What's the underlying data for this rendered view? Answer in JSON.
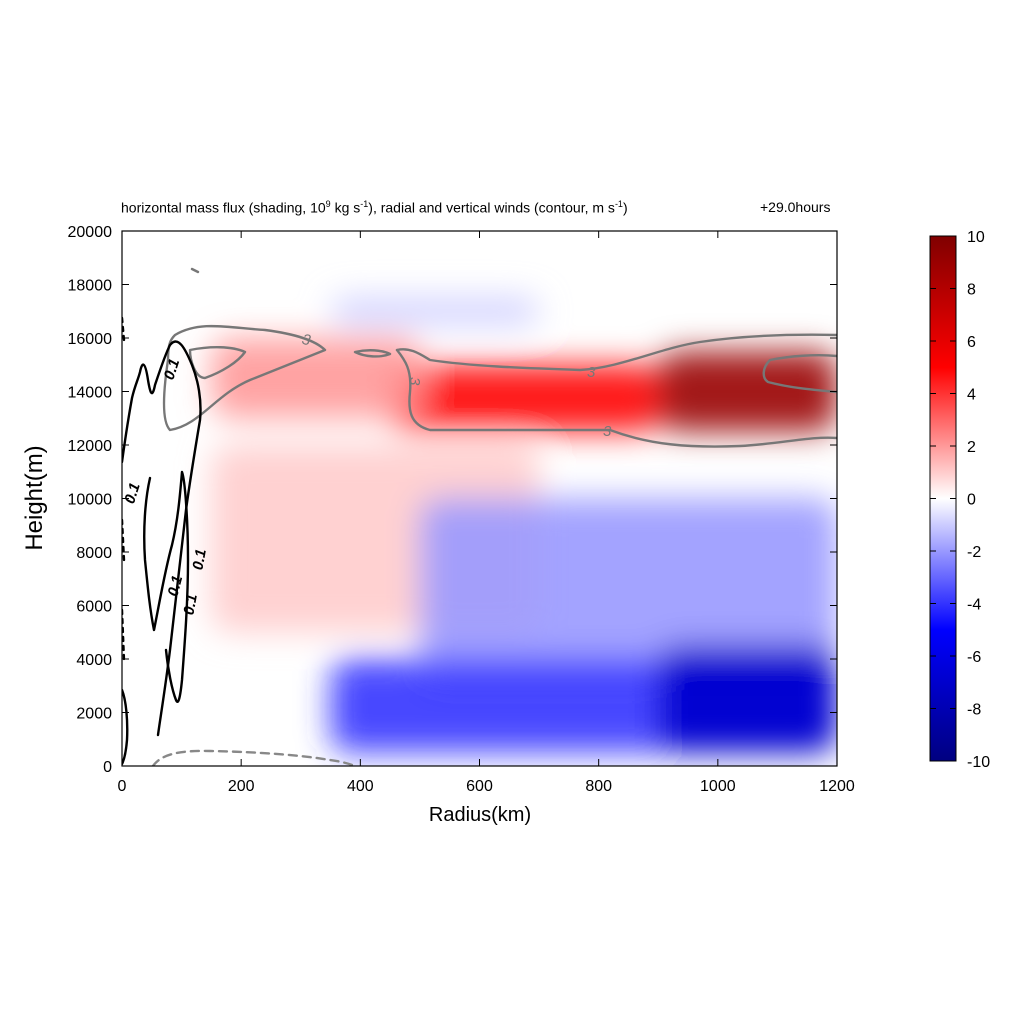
{
  "title": {
    "part1": "horizontal mass flux (shading, 10",
    "exp1": "9",
    "part2": " kg s",
    "exp2": "-1",
    "part3": "), radial and vertical winds (contour, m s",
    "exp3": "-1",
    "part4": ")",
    "time": "+29.0hours"
  },
  "chart_data": {
    "type": "heatmap",
    "xlabel": "Radius(km)",
    "ylabel": "Height(m)",
    "xlim": [
      0,
      1200
    ],
    "ylim": [
      0,
      20000
    ],
    "x_ticks": [
      "0",
      "200",
      "400",
      "600",
      "800",
      "1000",
      "1200"
    ],
    "y_ticks": [
      "0",
      "2000",
      "4000",
      "6000",
      "8000",
      "10000",
      "12000",
      "14000",
      "16000",
      "18000",
      "20000"
    ],
    "colorbar": {
      "range": [
        -10,
        10
      ],
      "ticks": [
        "10",
        "8",
        "6",
        "4",
        "2",
        "0",
        "-2",
        "-4",
        "-6",
        "-8",
        "-10"
      ],
      "colors": [
        "#000080",
        "#0000ff",
        "#ffffff",
        "#ff0000",
        "#800000"
      ]
    },
    "shading_regions": [
      {
        "r": [
          900,
          1200
        ],
        "z": [
          12500,
          15500
        ],
        "value": 9
      },
      {
        "r": [
          450,
          900
        ],
        "z": [
          12500,
          15000
        ],
        "value": 5
      },
      {
        "r": [
          150,
          500
        ],
        "z": [
          13000,
          16000
        ],
        "value": 2
      },
      {
        "r": [
          150,
          700
        ],
        "z": [
          5000,
          12000
        ],
        "value": 1
      },
      {
        "r": [
          350,
          700
        ],
        "z": [
          16500,
          17500
        ],
        "value": -1
      },
      {
        "r": [
          500,
          1200
        ],
        "z": [
          3000,
          10000
        ],
        "value": -2
      },
      {
        "r": [
          350,
          1200
        ],
        "z": [
          500,
          4000
        ],
        "value": -4
      },
      {
        "r": [
          900,
          1200
        ],
        "z": [
          500,
          4500
        ],
        "value": -7
      }
    ],
    "contour_labels_radial": [
      "3",
      "3",
      "3",
      "3"
    ],
    "contour_labels_vertical": [
      "0.1",
      "0.1",
      "0.1",
      "0.1",
      "0.1",
      "0.1"
    ]
  }
}
